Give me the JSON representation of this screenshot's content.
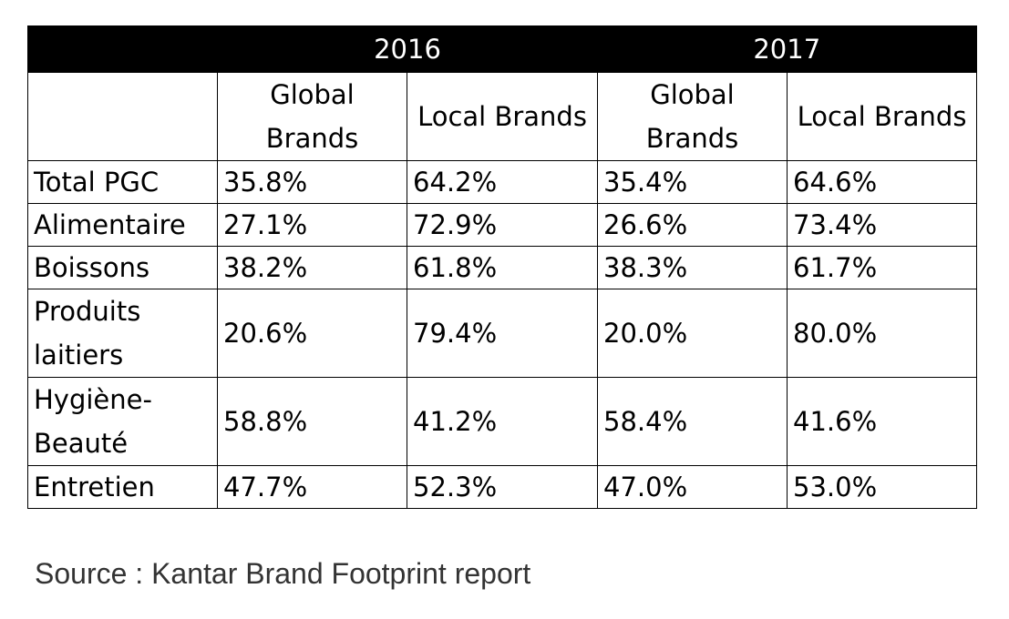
{
  "chart_data": {
    "type": "table",
    "years": [
      "2016",
      "2017"
    ],
    "column_headers": [
      "Global Brands",
      "Local Brands",
      "Global Brands",
      "Local Brands"
    ],
    "rows": [
      {
        "category": "Total PGC",
        "values": [
          "35.8%",
          "64.2%",
          "35.4%",
          "64.6%"
        ]
      },
      {
        "category": "Alimentaire",
        "values": [
          "27.1%",
          "72.9%",
          "26.6%",
          "73.4%"
        ]
      },
      {
        "category": "Boissons",
        "values": [
          "38.2%",
          "61.8%",
          "38.3%",
          "61.7%"
        ]
      },
      {
        "category": "Produits laitiers",
        "values": [
          "20.6%",
          "79.4%",
          "20.0%",
          "80.0%"
        ]
      },
      {
        "category": "Hygiène-Beauté",
        "values": [
          "58.8%",
          "41.2%",
          "58.4%",
          "41.6%"
        ]
      },
      {
        "category": "Entretien",
        "values": [
          "47.7%",
          "52.3%",
          "47.0%",
          "53.0%"
        ]
      }
    ]
  },
  "source": "Source : Kantar Brand Footprint report",
  "colors": {
    "header_bg": "#000000",
    "header_text": "#ffffff",
    "source_text": "#333333"
  }
}
